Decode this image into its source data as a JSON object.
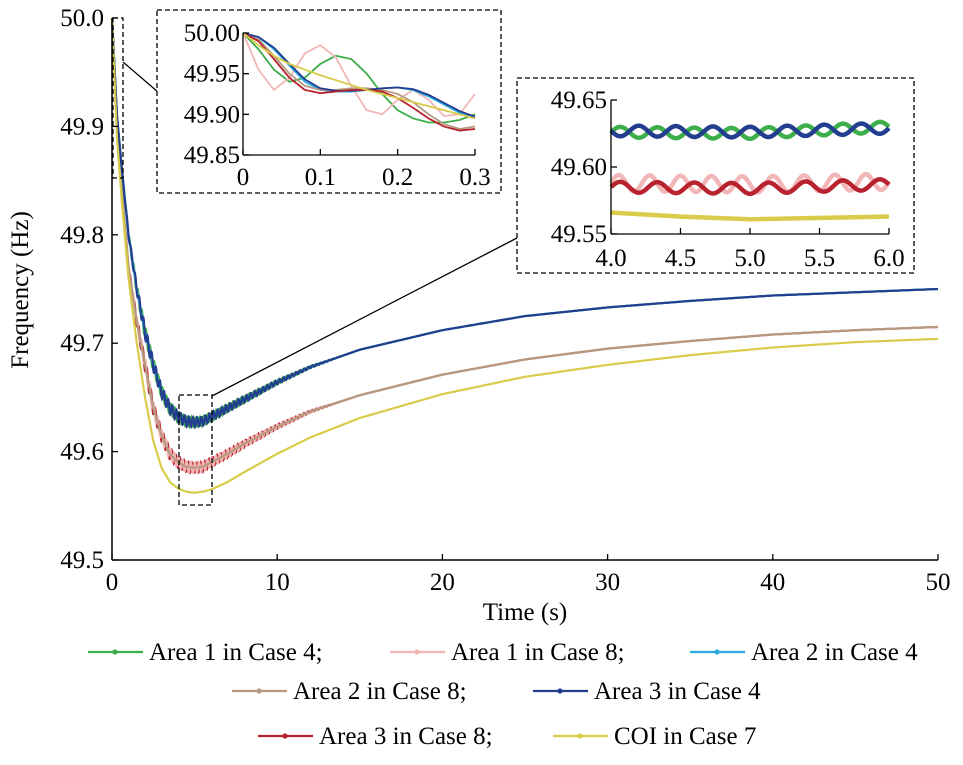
{
  "colors": {
    "area1_case4": "#3cae4a",
    "area1_case8": "#f2b6b6",
    "area2_case4": "#2aa9e0",
    "area2_case8": "#b59a80",
    "area3_case4": "#233d8f",
    "area3_case8": "#b8222e",
    "coi_case7": "#d9cc4a"
  },
  "chart_data": [
    {
      "type": "line",
      "title": "",
      "xlabel": "Time (s)",
      "ylabel": "Frequency (Hz)",
      "xlim": [
        0,
        50
      ],
      "ylim": [
        49.5,
        50.0
      ],
      "xticks": [
        "0",
        "10",
        "20",
        "30",
        "40",
        "50"
      ],
      "yticks": [
        "49.5",
        "49.6",
        "49.7",
        "49.8",
        "49.9",
        "50.0"
      ],
      "grid": false,
      "legend": "bottom",
      "series": [
        {
          "name": "Area 1 in Case 4;",
          "color_key": "area1_case4",
          "x": [
            0,
            0.3,
            0.6,
            1,
            1.5,
            2,
            2.5,
            3,
            3.5,
            4,
            4.5,
            5,
            5.5,
            6,
            7,
            8,
            10,
            12,
            15,
            20,
            25,
            30,
            35,
            40,
            45,
            50
          ],
          "y": [
            50.0,
            49.91,
            49.86,
            49.8,
            49.75,
            49.71,
            49.68,
            49.655,
            49.64,
            49.632,
            49.628,
            49.627,
            49.628,
            49.632,
            49.64,
            49.648,
            49.664,
            49.678,
            49.694,
            49.712,
            49.725,
            49.733,
            49.739,
            49.744,
            49.747,
            49.75
          ],
          "oscillating": true
        },
        {
          "name": "Area 1 in Case 8;",
          "color_key": "area1_case8",
          "x": [
            0,
            0.3,
            0.6,
            1,
            1.5,
            2,
            2.5,
            3,
            3.5,
            4,
            4.5,
            5,
            5.5,
            6,
            7,
            8,
            10,
            12,
            15,
            20,
            25,
            30,
            35,
            40,
            45,
            50
          ],
          "y": [
            50.0,
            49.9,
            49.84,
            49.77,
            49.72,
            49.68,
            49.64,
            49.615,
            49.598,
            49.59,
            49.586,
            49.585,
            49.586,
            49.59,
            49.598,
            49.607,
            49.623,
            49.637,
            49.652,
            49.671,
            49.685,
            49.695,
            49.702,
            49.708,
            49.712,
            49.715
          ],
          "oscillating": true
        },
        {
          "name": "Area 2 in Case 4",
          "color_key": "area2_case4",
          "x": [
            0,
            0.3,
            0.6,
            1,
            1.5,
            2,
            2.5,
            3,
            3.5,
            4,
            4.5,
            5,
            5.5,
            6,
            7,
            8,
            10,
            12,
            15,
            20,
            25,
            30,
            35,
            40,
            45,
            50
          ],
          "y": [
            50.0,
            49.91,
            49.86,
            49.8,
            49.75,
            49.71,
            49.68,
            49.655,
            49.64,
            49.632,
            49.628,
            49.627,
            49.628,
            49.632,
            49.64,
            49.648,
            49.664,
            49.678,
            49.694,
            49.712,
            49.725,
            49.733,
            49.739,
            49.744,
            49.747,
            49.75
          ],
          "oscillating": false
        },
        {
          "name": "Area 2 in Case 8;",
          "color_key": "area2_case8",
          "x": [
            0,
            0.3,
            0.6,
            1,
            1.5,
            2,
            2.5,
            3,
            3.5,
            4,
            4.5,
            5,
            5.5,
            6,
            7,
            8,
            10,
            12,
            15,
            20,
            25,
            30,
            35,
            40,
            45,
            50
          ],
          "y": [
            50.0,
            49.9,
            49.84,
            49.77,
            49.72,
            49.68,
            49.64,
            49.615,
            49.598,
            49.59,
            49.586,
            49.585,
            49.586,
            49.59,
            49.598,
            49.607,
            49.623,
            49.637,
            49.652,
            49.671,
            49.685,
            49.695,
            49.702,
            49.708,
            49.712,
            49.715
          ],
          "oscillating": false
        },
        {
          "name": "Area 3 in Case 4",
          "color_key": "area3_case4",
          "x": [
            0,
            0.3,
            0.6,
            1,
            1.5,
            2,
            2.5,
            3,
            3.5,
            4,
            4.5,
            5,
            5.5,
            6,
            7,
            8,
            10,
            12,
            15,
            20,
            25,
            30,
            35,
            40,
            45,
            50
          ],
          "y": [
            50.0,
            49.91,
            49.86,
            49.8,
            49.75,
            49.71,
            49.68,
            49.655,
            49.64,
            49.632,
            49.628,
            49.627,
            49.628,
            49.632,
            49.64,
            49.648,
            49.664,
            49.678,
            49.694,
            49.712,
            49.725,
            49.733,
            49.739,
            49.744,
            49.747,
            49.75
          ],
          "oscillating": true
        },
        {
          "name": "Area 3 in Case 8;",
          "color_key": "area3_case8",
          "x": [
            0,
            0.3,
            0.6,
            1,
            1.5,
            2,
            2.5,
            3,
            3.5,
            4,
            4.5,
            5,
            5.5,
            6,
            7,
            8,
            10,
            12,
            15,
            20,
            25,
            30,
            35,
            40,
            45,
            50
          ],
          "y": [
            50.0,
            49.9,
            49.84,
            49.77,
            49.72,
            49.68,
            49.64,
            49.615,
            49.598,
            49.59,
            49.586,
            49.585,
            49.586,
            49.59,
            49.598,
            49.607,
            49.623,
            49.637,
            49.652,
            49.671,
            49.685,
            49.695,
            49.702,
            49.708,
            49.712,
            49.715
          ],
          "oscillating": true
        },
        {
          "name": "COI in Case 7",
          "color_key": "coi_case7",
          "x": [
            0,
            0.3,
            0.6,
            1,
            1.5,
            2,
            2.5,
            3,
            3.5,
            4,
            4.5,
            5,
            5.5,
            6,
            7,
            8,
            10,
            12,
            15,
            20,
            25,
            30,
            35,
            40,
            45,
            50
          ],
          "y": [
            50.0,
            49.89,
            49.83,
            49.76,
            49.7,
            49.65,
            49.61,
            49.585,
            49.572,
            49.566,
            49.563,
            49.562,
            49.563,
            49.565,
            49.572,
            49.581,
            49.598,
            49.613,
            49.631,
            49.653,
            49.669,
            49.68,
            49.689,
            49.696,
            49.701,
            49.704
          ],
          "oscillating": false
        }
      ]
    },
    {
      "type": "line",
      "title": "",
      "inset": "early-transient",
      "xlim": [
        0,
        0.3
      ],
      "ylim": [
        49.85,
        50.0
      ],
      "xticks": [
        "0",
        "0.1",
        "0.2",
        "0.3"
      ],
      "yticks": [
        "49.85",
        "49.90",
        "49.95",
        "50.00"
      ],
      "series": [
        {
          "color_key": "area1_case4",
          "x": [
            0,
            0.02,
            0.04,
            0.06,
            0.08,
            0.1,
            0.12,
            0.14,
            0.16,
            0.18,
            0.2,
            0.22,
            0.24,
            0.26,
            0.28,
            0.3
          ],
          "y": [
            50.0,
            49.98,
            49.955,
            49.94,
            49.945,
            49.962,
            49.972,
            49.968,
            49.95,
            49.925,
            49.905,
            49.895,
            49.89,
            49.89,
            49.893,
            49.9
          ]
        },
        {
          "color_key": "area1_case8",
          "x": [
            0,
            0.02,
            0.04,
            0.06,
            0.08,
            0.1,
            0.12,
            0.14,
            0.16,
            0.18,
            0.2,
            0.22,
            0.24,
            0.26,
            0.28,
            0.3
          ],
          "y": [
            50.0,
            49.955,
            49.93,
            49.945,
            49.975,
            49.985,
            49.97,
            49.935,
            49.905,
            49.9,
            49.918,
            49.93,
            49.918,
            49.898,
            49.9,
            49.925
          ]
        },
        {
          "color_key": "area2_case4",
          "x": [
            0,
            0.02,
            0.04,
            0.06,
            0.08,
            0.1,
            0.12,
            0.14,
            0.16,
            0.18,
            0.2,
            0.22,
            0.24,
            0.26,
            0.28,
            0.3
          ],
          "y": [
            50.0,
            49.995,
            49.98,
            49.96,
            49.94,
            49.93,
            49.928,
            49.928,
            49.93,
            49.932,
            49.933,
            49.93,
            49.922,
            49.912,
            49.902,
            49.895
          ]
        },
        {
          "color_key": "area2_case8",
          "x": [
            0,
            0.02,
            0.04,
            0.06,
            0.08,
            0.1,
            0.12,
            0.14,
            0.16,
            0.18,
            0.2,
            0.22,
            0.24,
            0.26,
            0.28,
            0.3
          ],
          "y": [
            50.0,
            49.992,
            49.972,
            49.95,
            49.935,
            49.93,
            49.93,
            49.932,
            49.932,
            49.93,
            49.925,
            49.915,
            49.9,
            49.888,
            49.882,
            49.885
          ]
        },
        {
          "color_key": "area3_case4",
          "x": [
            0,
            0.02,
            0.04,
            0.06,
            0.08,
            0.1,
            0.12,
            0.14,
            0.16,
            0.18,
            0.2,
            0.22,
            0.24,
            0.26,
            0.28,
            0.3
          ],
          "y": [
            50.0,
            49.995,
            49.982,
            49.962,
            49.943,
            49.932,
            49.929,
            49.929,
            49.93,
            49.932,
            49.933,
            49.931,
            49.924,
            49.914,
            49.904,
            49.897
          ]
        },
        {
          "color_key": "area3_case8",
          "x": [
            0,
            0.02,
            0.04,
            0.06,
            0.08,
            0.1,
            0.12,
            0.14,
            0.16,
            0.18,
            0.2,
            0.22,
            0.24,
            0.26,
            0.28,
            0.3
          ],
          "y": [
            50.0,
            49.99,
            49.968,
            49.945,
            49.93,
            49.926,
            49.928,
            49.93,
            49.93,
            49.928,
            49.92,
            49.908,
            49.895,
            49.885,
            49.88,
            49.882
          ]
        },
        {
          "color_key": "coi_case7",
          "x": [
            0,
            0.02,
            0.04,
            0.06,
            0.08,
            0.1,
            0.12,
            0.14,
            0.16,
            0.18,
            0.2,
            0.22,
            0.24,
            0.26,
            0.28,
            0.3
          ],
          "y": [
            50.0,
            49.985,
            49.972,
            49.962,
            49.955,
            49.948,
            49.942,
            49.936,
            49.93,
            49.925,
            49.92,
            49.915,
            49.91,
            49.905,
            49.9,
            49.895
          ]
        }
      ]
    },
    {
      "type": "line",
      "title": "",
      "inset": "nadir-zoom",
      "xlim": [
        4.0,
        6.0
      ],
      "ylim": [
        49.55,
        49.65
      ],
      "xticks": [
        "4.0",
        "4.5",
        "5.0",
        "5.5",
        "6.0"
      ],
      "yticks": [
        "49.55",
        "49.60",
        "49.65"
      ],
      "series": [
        {
          "color_key": "area1_case4",
          "x": [
            4.0,
            5.0,
            6.0
          ],
          "y": [
            49.626,
            49.625,
            49.63
          ],
          "amplitude": 0.004,
          "cycles": 7.5
        },
        {
          "color_key": "area3_case4",
          "x": [
            4.0,
            5.0,
            6.0
          ],
          "y": [
            49.627,
            49.626,
            49.629
          ],
          "amplitude": 0.004,
          "cycles": 7.5,
          "phase": 3.14
        },
        {
          "color_key": "area1_case8",
          "x": [
            4.0,
            5.0,
            6.0
          ],
          "y": [
            49.588,
            49.587,
            49.589
          ],
          "amplitude": 0.006,
          "cycles": 9
        },
        {
          "color_key": "area3_case8",
          "x": [
            4.0,
            5.0,
            6.0
          ],
          "y": [
            49.585,
            49.584,
            49.587
          ],
          "amplitude": 0.004,
          "cycles": 7.5
        },
        {
          "color_key": "coi_case7",
          "x": [
            4.0,
            4.5,
            5.0,
            5.5,
            6.0
          ],
          "y": [
            49.566,
            49.563,
            49.561,
            49.562,
            49.563
          ],
          "amplitude": 0,
          "cycles": 0
        }
      ]
    }
  ],
  "legend_rows": [
    [
      "area1_case4",
      "area1_case8",
      "area2_case4"
    ],
    [
      "area2_case8",
      "area3_case4"
    ],
    [
      "area3_case8",
      "coi_case7"
    ]
  ]
}
